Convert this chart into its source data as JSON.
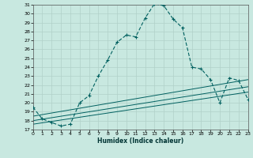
{
  "xlabel": "Humidex (Indice chaleur)",
  "bg_color": "#c8e8e0",
  "grid_color": "#b0d0c8",
  "line_color": "#006060",
  "ylim": [
    17,
    31
  ],
  "xlim": [
    0,
    23
  ],
  "yticks": [
    17,
    18,
    19,
    20,
    21,
    22,
    23,
    24,
    25,
    26,
    27,
    28,
    29,
    30,
    31
  ],
  "xticks": [
    0,
    1,
    2,
    3,
    4,
    5,
    6,
    7,
    8,
    9,
    10,
    11,
    12,
    13,
    14,
    15,
    16,
    17,
    18,
    19,
    20,
    21,
    22,
    23
  ],
  "line1_x": [
    0,
    1,
    2,
    3,
    4,
    5,
    6,
    7,
    8,
    9,
    10,
    11,
    12,
    13,
    14,
    15,
    16,
    17,
    18,
    19,
    20,
    21,
    22,
    23
  ],
  "line1_y": [
    19.5,
    18.2,
    17.8,
    17.4,
    17.6,
    20.0,
    20.8,
    23.0,
    24.8,
    26.8,
    27.6,
    27.4,
    29.5,
    31.1,
    30.9,
    29.4,
    28.4,
    24.0,
    23.8,
    22.6,
    20.0,
    22.8,
    22.5,
    20.4
  ],
  "line2_x": [
    0,
    23
  ],
  "line2_y": [
    17.6,
    21.2
  ],
  "line3_x": [
    0,
    23
  ],
  "line3_y": [
    18.0,
    21.8
  ],
  "line4_x": [
    0,
    23
  ],
  "line4_y": [
    18.5,
    22.6
  ]
}
